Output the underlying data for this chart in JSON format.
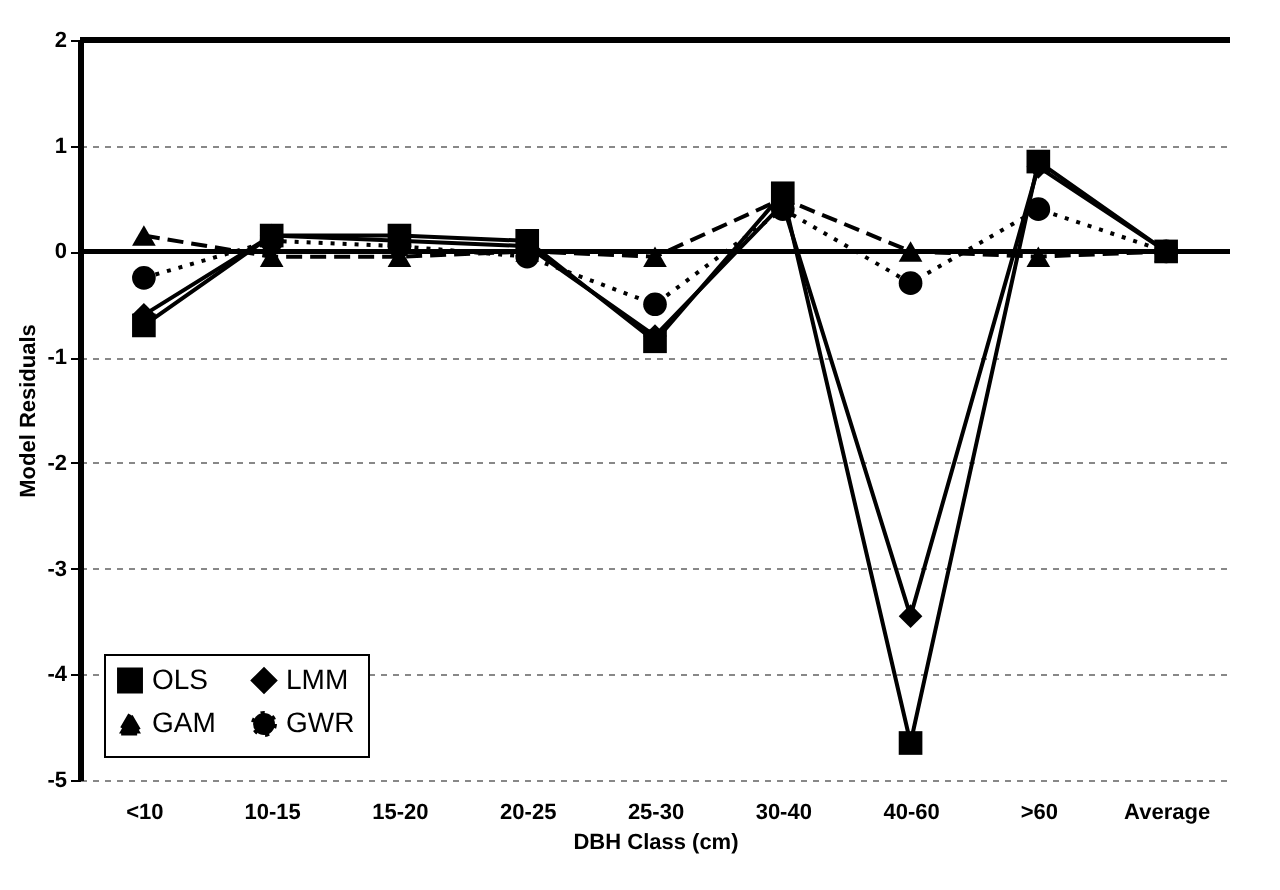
{
  "chart_data": {
    "type": "line",
    "xlabel": "DBH Class (cm)",
    "ylabel": "Model Residuals",
    "categories": [
      "<10",
      "10-15",
      "15-20",
      "20-25",
      "25-30",
      "30-40",
      "40-60",
      ">60",
      "Average"
    ],
    "series": [
      {
        "name": "OLS",
        "color": "#000000",
        "marker": "square",
        "line_style": "solid",
        "values": [
          -0.7,
          0.15,
          0.15,
          0.1,
          -0.85,
          0.55,
          -4.65,
          0.85,
          0
        ]
      },
      {
        "name": "LMM",
        "color": "#000000",
        "marker": "diamond",
        "line_style": "solid",
        "values": [
          -0.6,
          0.15,
          0.1,
          0.05,
          -0.8,
          0.45,
          -3.45,
          0.8,
          0
        ]
      },
      {
        "name": "GAM",
        "color": "#000000",
        "marker": "triangle",
        "line_style": "dashed",
        "values": [
          0.15,
          -0.05,
          -0.05,
          0,
          -0.05,
          0.5,
          0,
          -0.05,
          0
        ]
      },
      {
        "name": "GWR",
        "color": "#000000",
        "marker": "circle",
        "line_style": "dotted",
        "values": [
          -0.25,
          0.1,
          0.05,
          -0.05,
          -0.5,
          0.4,
          -0.3,
          0.4,
          0
        ]
      }
    ],
    "ylim": [
      -5,
      2
    ],
    "yticks": [
      -5,
      -4,
      -3,
      -2,
      -1,
      0,
      1,
      2
    ],
    "grid": "y",
    "legend": "bottom left",
    "ref_lines": [
      {
        "axis": "y",
        "value": 0,
        "color": "#000000",
        "line_style": "solid"
      }
    ]
  }
}
